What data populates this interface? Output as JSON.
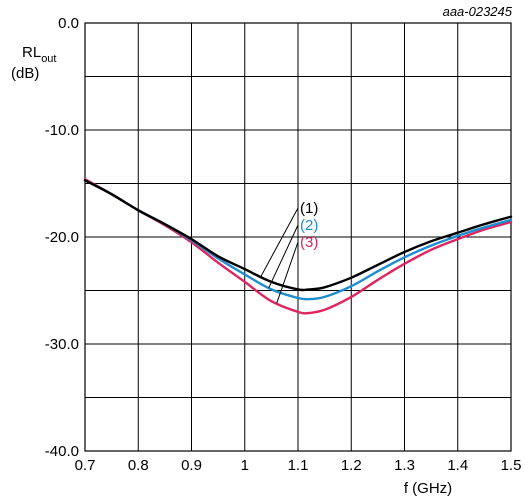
{
  "figure_ref": "aaa-023245",
  "chart_data": {
    "type": "line",
    "xlabel": "f (GHz)",
    "ylabel_main": "RL",
    "ylabel_sub": "out",
    "ylabel_unit": "(dB)",
    "xlim": [
      0.7,
      1.5
    ],
    "ylim": [
      -40,
      0
    ],
    "x_ticks": [
      0.7,
      0.8,
      0.9,
      1.0,
      1.1,
      1.2,
      1.3,
      1.4,
      1.5
    ],
    "x_tick_labels": [
      "0.7",
      "0.8",
      "0.9",
      "1",
      "1.1",
      "1.2",
      "1.3",
      "1.4",
      "1.5"
    ],
    "y_ticks": [
      0,
      -10,
      -20,
      -30,
      -40
    ],
    "y_tick_labels": [
      "0.0",
      "-10.0",
      "-20.0",
      "-30.0",
      "-40.0"
    ],
    "grid": true,
    "series": [
      {
        "name": "(1)",
        "color": "#000000",
        "x": [
          0.7,
          0.75,
          0.8,
          0.85,
          0.9,
          0.95,
          1.0,
          1.05,
          1.1,
          1.12,
          1.15,
          1.2,
          1.25,
          1.3,
          1.35,
          1.4,
          1.45,
          1.5
        ],
        "y": [
          -14.7,
          -16.0,
          -17.5,
          -18.8,
          -20.2,
          -21.8,
          -23.0,
          -24.2,
          -24.9,
          -24.9,
          -24.7,
          -23.8,
          -22.6,
          -21.4,
          -20.4,
          -19.6,
          -18.8,
          -18.1
        ]
      },
      {
        "name": "(2)",
        "color": "#1c8dce",
        "x": [
          0.7,
          0.75,
          0.8,
          0.85,
          0.9,
          0.95,
          1.0,
          1.05,
          1.1,
          1.12,
          1.15,
          1.2,
          1.25,
          1.3,
          1.35,
          1.4,
          1.45,
          1.5
        ],
        "y": [
          -14.7,
          -16.0,
          -17.5,
          -18.8,
          -20.3,
          -22.0,
          -23.5,
          -24.9,
          -25.7,
          -25.8,
          -25.6,
          -24.6,
          -23.2,
          -21.9,
          -20.8,
          -19.9,
          -19.1,
          -18.4
        ]
      },
      {
        "name": "(3)",
        "color": "#e0245e",
        "x": [
          0.7,
          0.75,
          0.8,
          0.85,
          0.9,
          0.95,
          1.0,
          1.05,
          1.1,
          1.12,
          1.15,
          1.2,
          1.25,
          1.3,
          1.35,
          1.4,
          1.45,
          1.5
        ],
        "y": [
          -14.6,
          -16.0,
          -17.5,
          -18.9,
          -20.5,
          -22.4,
          -24.2,
          -26.0,
          -27.0,
          -27.1,
          -26.8,
          -25.6,
          -24.0,
          -22.5,
          -21.2,
          -20.2,
          -19.3,
          -18.6
        ]
      }
    ]
  }
}
